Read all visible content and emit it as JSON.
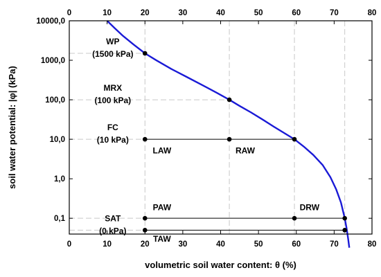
{
  "chart_data": {
    "type": "line",
    "title": "",
    "xlabel": "volumetric soil water content: θ (%)",
    "ylabel": "soil water potential: |φ| (kPa)",
    "xlim": [
      0,
      80
    ],
    "y_scale": "log",
    "x_ticks": [
      "0",
      "10",
      "20",
      "30",
      "40",
      "50",
      "60",
      "70",
      "80"
    ],
    "x_ticks_top": [
      "0",
      "10",
      "20",
      "30",
      "40",
      "50",
      "60",
      "70",
      "80"
    ],
    "y_ticks": [
      {
        "value": 10000,
        "label": "10000,0"
      },
      {
        "value": 1000,
        "label": "1000,0"
      },
      {
        "value": 100,
        "label": "100,0"
      },
      {
        "value": 10,
        "label": "10,0"
      },
      {
        "value": 1,
        "label": "1,0"
      },
      {
        "value": 0.1,
        "label": "0,1"
      }
    ],
    "series": [
      {
        "color": "#1a1ad6",
        "points": [
          [
            10.0,
            10000
          ],
          [
            12.0,
            6500
          ],
          [
            14.0,
            4300
          ],
          [
            17.0,
            2500
          ],
          [
            20.0,
            1500
          ],
          [
            23.0,
            1000
          ],
          [
            27.0,
            600
          ],
          [
            31.0,
            380
          ],
          [
            35.0,
            240
          ],
          [
            39.0,
            150
          ],
          [
            42.3,
            100
          ],
          [
            45.0,
            70
          ],
          [
            48.0,
            48
          ],
          [
            51.0,
            32
          ],
          [
            54.0,
            21
          ],
          [
            57.0,
            14
          ],
          [
            59.5,
            10
          ],
          [
            62.0,
            6.5
          ],
          [
            64.5,
            4
          ],
          [
            67.0,
            2.2
          ],
          [
            69.0,
            1.1
          ],
          [
            70.5,
            0.55
          ],
          [
            71.8,
            0.25
          ],
          [
            72.8,
            0.1
          ],
          [
            73.3,
            0.055
          ],
          [
            73.7,
            0.03
          ],
          [
            74.0,
            0.018
          ]
        ]
      }
    ],
    "key_points": [
      {
        "x": 20.0,
        "y": 1500
      },
      {
        "x": 42.3,
        "y": 100
      },
      {
        "x": 59.5,
        "y": 10
      },
      {
        "x": 20.0,
        "y": 10
      },
      {
        "x": 42.3,
        "y": 10
      },
      {
        "x": 20.0,
        "y": 0.1
      },
      {
        "x": 59.5,
        "y": 0.1
      },
      {
        "x": 72.8,
        "y": 0.1
      },
      {
        "x": 20.0,
        "y": 0.05
      },
      {
        "x": 72.8,
        "y": 0.05
      }
    ],
    "horizontal_lines": [
      {
        "x1": 20.0,
        "x2": 59.5,
        "y": 10
      },
      {
        "x1": 20.0,
        "x2": 72.8,
        "y": 0.1
      },
      {
        "x1": 20.0,
        "x2": 72.8,
        "y": 0.05
      }
    ],
    "dashed_guides": {
      "color": "#c8c8c8",
      "horizontal": [
        {
          "y": 1500,
          "x_to": 20.0
        },
        {
          "y": 100,
          "x_to": 42.3
        },
        {
          "y": 10,
          "x_to": 20.0
        },
        {
          "y": 0.1,
          "x_to": 20.0
        },
        {
          "y": 0.05,
          "x_to": 20.0
        }
      ],
      "vertical": [
        20.0,
        42.3,
        59.5,
        72.8
      ]
    },
    "annotations": [
      {
        "id": "wp",
        "lines": [
          "WP",
          "(1500 kPa)"
        ],
        "x": 11.5,
        "y": 1500
      },
      {
        "id": "mrx",
        "lines": [
          "MRX",
          "(100 kPa)"
        ],
        "x": 11.5,
        "y": 100
      },
      {
        "id": "fc",
        "lines": [
          "FC",
          "(10 kPa)"
        ],
        "x": 11.5,
        "y": 10
      },
      {
        "id": "sat",
        "lines": [
          "SAT",
          "(0 kPa)"
        ],
        "x": 11.5,
        "y": 0.05
      },
      {
        "id": "law",
        "lines": [
          "LAW"
        ],
        "x": 24.5,
        "y": 5.2
      },
      {
        "id": "raw",
        "lines": [
          "RAW"
        ],
        "x": 46.5,
        "y": 5.2
      },
      {
        "id": "paw",
        "lines": [
          "PAW"
        ],
        "x": 24.5,
        "y": 0.19
      },
      {
        "id": "drw",
        "lines": [
          "DRW"
        ],
        "x": 63.5,
        "y": 0.19
      },
      {
        "id": "taw",
        "lines": [
          "TAW"
        ],
        "x": 24.5,
        "y": 0.03
      }
    ]
  }
}
